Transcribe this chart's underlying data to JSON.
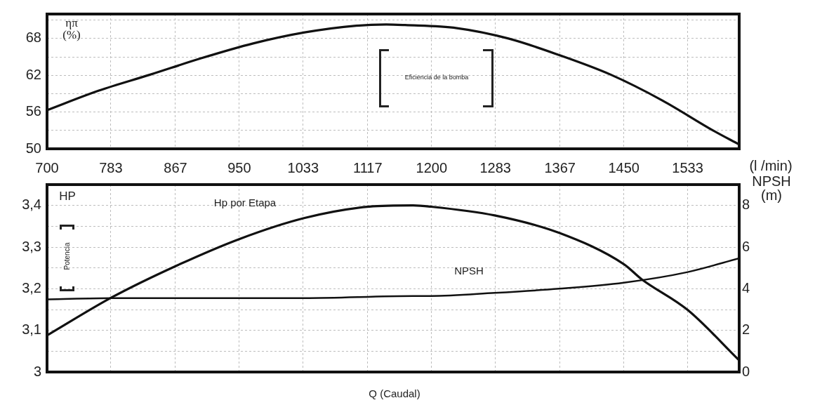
{
  "chart_data": [
    {
      "type": "line",
      "ylabel": "ηπ (%)",
      "xlabel": "(l /min)",
      "annotations": [
        "Eficiencia de la bomba"
      ],
      "x": [
        700,
        767.5,
        834,
        901,
        968,
        1035,
        1102,
        1141,
        1165.5,
        1233,
        1300,
        1366,
        1433,
        1500,
        1566,
        1600
      ],
      "values": [
        56.3,
        59.5,
        62.1,
        64.8,
        67.2,
        69.0,
        70.1,
        70.3,
        70.2,
        69.7,
        68.0,
        65.3,
        62.1,
        57.9,
        53.0,
        50.7
      ],
      "color": "#111111",
      "xlim": [
        700,
        1600
      ],
      "xticks": [
        700,
        783,
        867,
        950,
        1033,
        1117,
        1200,
        1283,
        1367,
        1450,
        1533
      ],
      "ylim": [
        50,
        72
      ],
      "yticks": [
        50,
        {
          "value": 53,
          "label": null
        },
        56,
        {
          "value": 59,
          "label": null
        },
        62,
        {
          "value": 65,
          "label": null
        },
        68,
        {
          "value": 71,
          "label": null
        }
      ],
      "grid": true,
      "legend": false,
      "marker": "none",
      "line_style": "solid"
    },
    {
      "type": "line",
      "xlabel": "Q (Caudal)",
      "ylabel": "HP",
      "y2label": "NPSH (m)",
      "annotations": [
        "Potencia"
      ],
      "series": [
        {
          "name": "Hp por Etapa",
          "color": "#111111",
          "x": [
            702,
            785,
            868,
            951,
            1035,
            1119,
            1176,
            1199,
            1282,
            1366,
            1450,
            1473,
            1533,
            1600
          ],
          "values": [
            3.09,
            3.18,
            3.255,
            3.32,
            3.37,
            3.397,
            3.4,
            3.397,
            3.376,
            3.334,
            3.259,
            3.223,
            3.149,
            3.028
          ]
        },
        {
          "name": "NPSH",
          "color": "#111111",
          "axis": "y2",
          "x": [
            702,
            785,
            1035,
            1176,
            1199,
            1282,
            1366,
            1450,
            1533,
            1600
          ],
          "values": [
            3.49,
            3.55,
            3.55,
            3.65,
            3.65,
            3.8,
            4.0,
            4.29,
            4.8,
            5.46
          ]
        }
      ],
      "xlim": [
        700,
        1600
      ],
      "xticks": [
        700,
        783,
        867,
        950,
        1033,
        1117,
        1200,
        1283,
        1367,
        1450,
        1533
      ],
      "ylim": [
        3,
        3.45
      ],
      "yticks": [
        {
          "value": 3,
          "label": "3"
        },
        {
          "value": 3.05,
          "label": null
        },
        {
          "value": 3.1,
          "label": "3,1"
        },
        {
          "value": 3.15,
          "label": null
        },
        {
          "value": 3.2,
          "label": "3,2"
        },
        {
          "value": 3.25,
          "label": null
        },
        {
          "value": 3.3,
          "label": "3,3"
        },
        {
          "value": 3.35,
          "label": null
        },
        {
          "value": 3.4,
          "label": "3,4"
        }
      ],
      "y2lim": [
        0,
        9
      ],
      "y2ticks": [
        0,
        2,
        4,
        6,
        8
      ],
      "tick_labels": "y",
      "grid": true,
      "legend": false,
      "marker": "none",
      "line_style": "solid"
    }
  ]
}
